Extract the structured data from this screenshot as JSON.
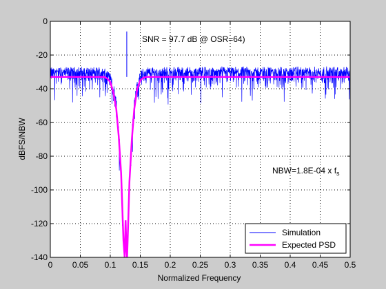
{
  "chart_data": {
    "type": "line",
    "title": "",
    "xlabel": "Normalized Frequency",
    "ylabel": "dBFS/NBW",
    "xlim": [
      0,
      0.5
    ],
    "ylim": [
      -140,
      0
    ],
    "xticks": [
      0,
      0.05,
      0.1,
      0.15,
      0.2,
      0.25,
      0.3,
      0.35,
      0.4,
      0.45,
      0.5
    ],
    "xtick_labels": [
      "0",
      "0.05",
      "0.1",
      "0.15",
      "0.2",
      "0.25",
      "0.3",
      "0.35",
      "0.4",
      "0.45",
      "0.5"
    ],
    "yticks": [
      0,
      -20,
      -40,
      -60,
      -80,
      -100,
      -120,
      -140
    ],
    "ytick_labels": [
      "0",
      "-20",
      "-40",
      "-60",
      "-80",
      "-100",
      "-120",
      "-140"
    ],
    "grid": true,
    "legend_position": "bottom-right",
    "annotations": {
      "snr": "SNR = 97.7 dB @ OSR=64)",
      "nbw": "NBW=1.8E-04 x f",
      "nbw_sub": "s"
    },
    "series": [
      {
        "name": "Simulation",
        "color": "#0000ff",
        "style": "noisy spectrum",
        "noise_floor_db": -33,
        "notch_center": 0.125,
        "notch_min_db": -140,
        "signal_tone": {
          "x": 0.1275,
          "y": -6
        }
      },
      {
        "name": "Expected PSD",
        "color": "#ff00ff",
        "x": [
          0,
          0.09,
          0.095,
          0.1,
          0.105,
          0.11,
          0.114,
          0.118,
          0.12,
          0.122,
          0.124,
          0.1255,
          0.127,
          0.128,
          0.13,
          0.132,
          0.136,
          0.14,
          0.145,
          0.15,
          0.155,
          0.16,
          0.5
        ],
        "y": [
          -33,
          -33,
          -34,
          -36,
          -42,
          -52,
          -68,
          -90,
          -110,
          -130,
          -140,
          -118,
          -136,
          -140,
          -118,
          -95,
          -70,
          -52,
          -40,
          -35,
          -33.5,
          -33,
          -33
        ]
      }
    ]
  }
}
